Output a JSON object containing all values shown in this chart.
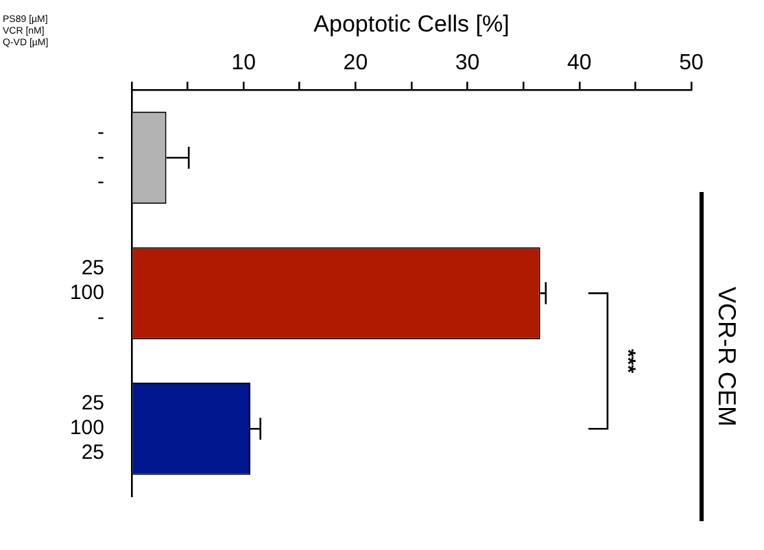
{
  "chart_data": {
    "type": "bar",
    "orientation": "horizontal",
    "title": "VCR-R CEM",
    "ylabel": "PS89 [µM]\nVCR [nM]\nQ-VD [µM]",
    "xlabel": "Apoptotic Cells [%]",
    "categories": [
      "-\n-\n-",
      "25\n100\n-",
      "25\n100\n25"
    ],
    "values": [
      3.1,
      36.5,
      10.6
    ],
    "colors": [
      "#b3b3b3",
      "#b01a00",
      "#00178f"
    ],
    "errors": [
      2.0,
      0.5,
      0.9
    ],
    "xlim": [
      0,
      50
    ],
    "xticks": [
      {
        "value": 0,
        "label": null
      },
      {
        "value": 5,
        "label": null
      },
      10,
      {
        "value": 15,
        "label": null
      },
      20,
      {
        "value": 25,
        "label": null
      },
      30,
      {
        "value": 35,
        "label": null
      },
      40,
      {
        "value": 45,
        "label": null
      },
      50
    ],
    "annotations": [
      "***"
    ],
    "grid": false,
    "legend": false
  }
}
